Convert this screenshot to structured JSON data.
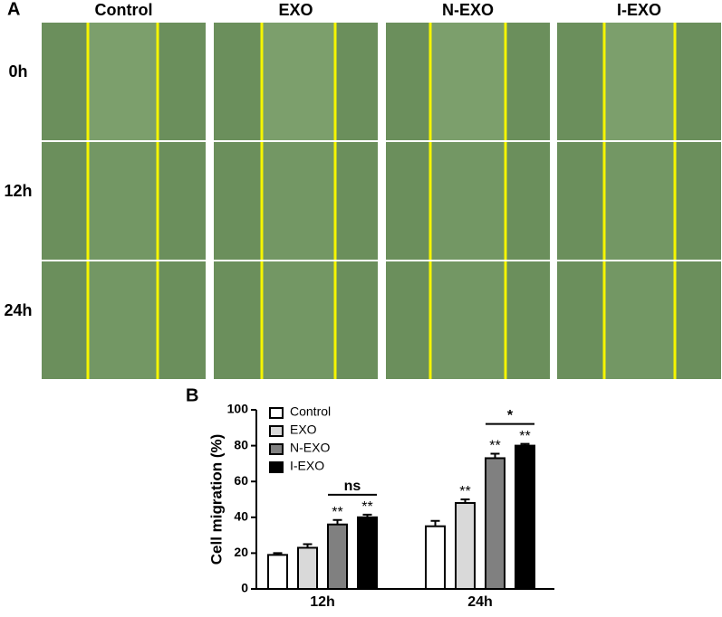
{
  "panel_a": {
    "label": "A",
    "columns": [
      "Control",
      "EXO",
      "N-EXO",
      "I-EXO"
    ],
    "rows": [
      "0h",
      "12h",
      "24h"
    ]
  },
  "chart_data": {
    "type": "bar",
    "panel_label": "B",
    "y_label": "Cell migration (%)",
    "categories": [
      "12h",
      "24h"
    ],
    "series": [
      {
        "name": "Control",
        "color": "#ffffff",
        "values": [
          19,
          35
        ],
        "errors": [
          1,
          3
        ],
        "significance": [
          null,
          null
        ]
      },
      {
        "name": "EXO",
        "color": "#d9d9d9",
        "values": [
          23,
          48
        ],
        "errors": [
          2,
          2
        ],
        "significance": [
          null,
          "**"
        ]
      },
      {
        "name": "N-EXO",
        "color": "#808080",
        "values": [
          36,
          73
        ],
        "errors": [
          2.5,
          2.5
        ],
        "significance": [
          "**",
          "**"
        ]
      },
      {
        "name": "I-EXO",
        "color": "#000000",
        "values": [
          40,
          80
        ],
        "errors": [
          1.5,
          1
        ],
        "significance": [
          "**",
          "**"
        ]
      }
    ],
    "brackets": [
      "ns",
      "*"
    ],
    "ylim": [
      0,
      100
    ],
    "yticks": [
      0,
      20,
      40,
      60,
      80,
      100
    ],
    "legend": "top-left"
  }
}
